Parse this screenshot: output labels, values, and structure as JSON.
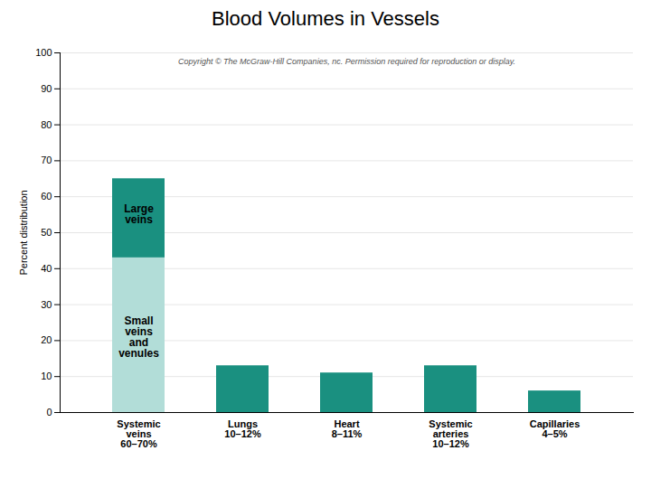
{
  "chart_data": {
    "type": "bar",
    "stacked": true,
    "title": "Blood Volumes in Vessels",
    "ylabel": "Percent distribution",
    "categories": [
      "Systemic\nveins\n60–70%",
      "Lungs\n10–12%",
      "Heart\n8–11%",
      "Systemic\narteries\n10–12%",
      "Capillaries\n4–5%"
    ],
    "series": [
      {
        "color": "#b2ddd8",
        "values": [
          43,
          0,
          0,
          0,
          0
        ]
      },
      {
        "color": "#1a9080",
        "values": [
          22,
          13,
          11,
          13,
          6
        ]
      }
    ],
    "ylim": [
      0,
      100
    ],
    "yticks": [
      0,
      10,
      20,
      30,
      40,
      50,
      60,
      70,
      80,
      90,
      100
    ],
    "grid": true,
    "annotations": [
      {
        "text": "Small\nveins\nand\nvenules",
        "x": "Systemic\nveins\n60–70%",
        "y": 21
      },
      {
        "text": "Large\nveins",
        "x": "Systemic\nveins\n60–70%",
        "y": 55
      },
      {
        "text": "Copyright © The McGraw-Hill Companies, nc. Permission required for reproduction or display."
      }
    ]
  }
}
